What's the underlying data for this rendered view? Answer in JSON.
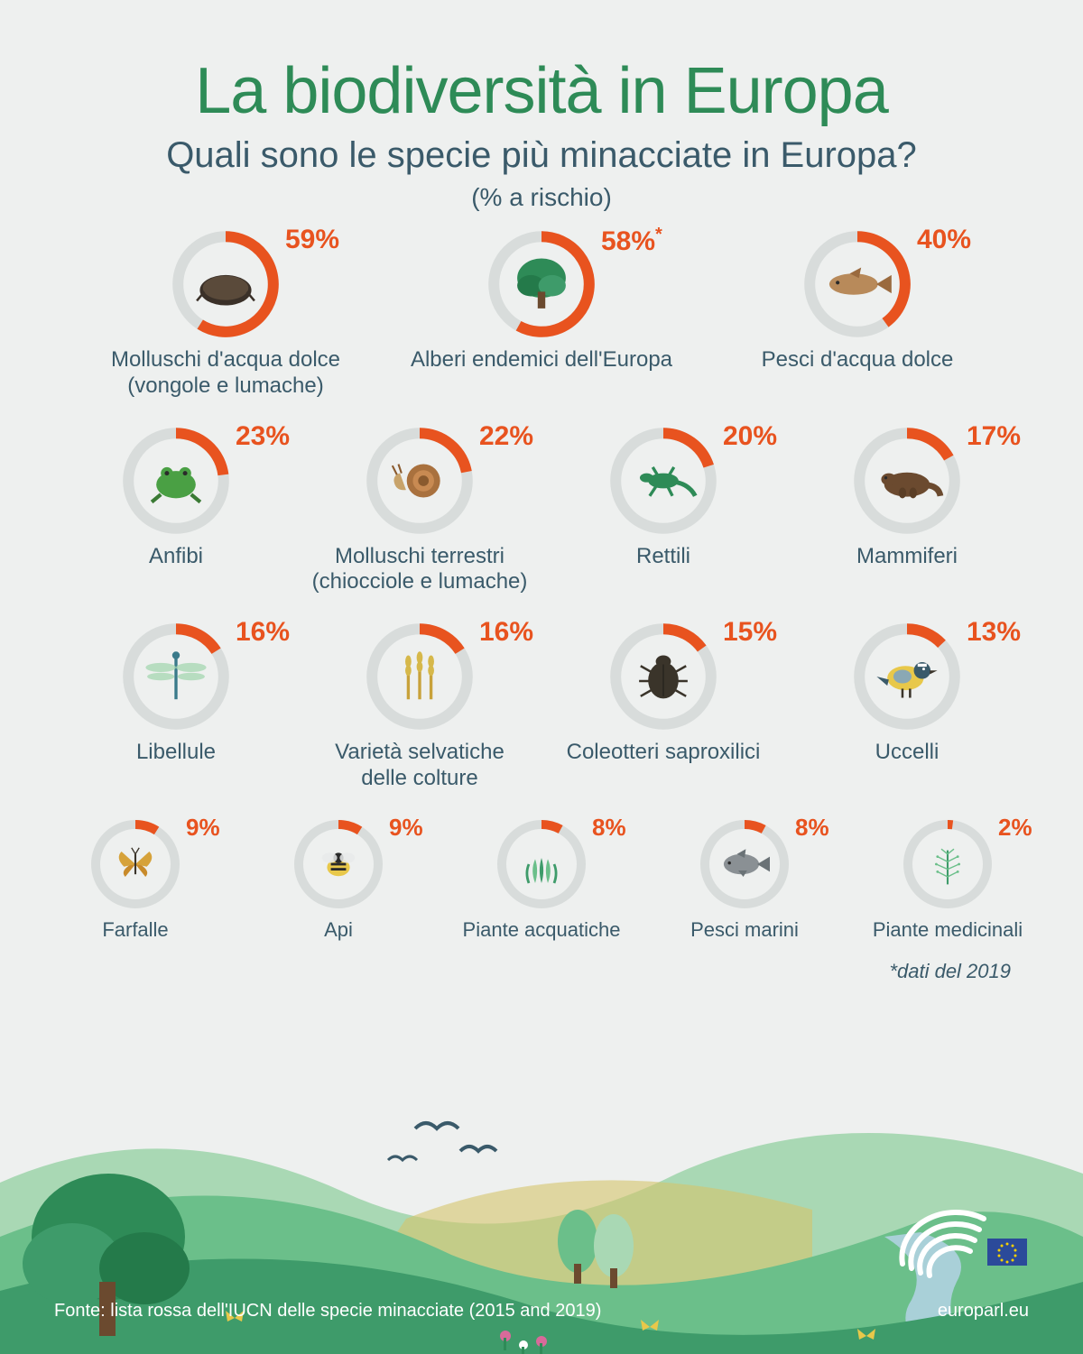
{
  "colors": {
    "title": "#2e8b57",
    "subtitle": "#3a5a6a",
    "text": "#3a5a6a",
    "arc": "#e8531f",
    "arc_bg": "#d8dcdb",
    "pct": "#e8531f",
    "landscape_hill_dark": "#3e9b6a",
    "landscape_hill_mid": "#6bbf8a",
    "landscape_hill_light": "#a9d8b4",
    "landscape_field": "#d6c46a",
    "landscape_river": "#a9d0d8",
    "landscape_tree": "#2e8b57",
    "bg": "#eef0ef"
  },
  "title": "La biodiversità in Europa",
  "subtitle": "Quali sono le specie più minacciate in Europa?",
  "subnote": "(% a rischio)",
  "footnote": "*dati del 2019",
  "source": "Fonte: lista rossa dell'IUCN delle specie minacciate (2015 and 2019)",
  "site": "europarl.eu",
  "rows": [
    {
      "cls": "row3",
      "items": [
        {
          "pct": 59,
          "label": "Molluschi d'acqua dolce\n(vongole e lumache)",
          "icon": "mussel",
          "star": false
        },
        {
          "pct": 58,
          "label": "Alberi endemici dell'Europa",
          "icon": "tree",
          "star": true
        },
        {
          "pct": 40,
          "label": "Pesci d'acqua dolce",
          "icon": "fish_brown",
          "star": false
        }
      ]
    },
    {
      "cls": "row4",
      "items": [
        {
          "pct": 23,
          "label": "Anfibi",
          "icon": "frog",
          "star": false
        },
        {
          "pct": 22,
          "label": "Molluschi terrestri\n(chiocciole e lumache)",
          "icon": "snail",
          "star": false
        },
        {
          "pct": 20,
          "label": "Rettili",
          "icon": "lizard",
          "star": false
        },
        {
          "pct": 17,
          "label": "Mammiferi",
          "icon": "otter",
          "star": false
        }
      ]
    },
    {
      "cls": "row4",
      "items": [
        {
          "pct": 16,
          "label": "Libellule",
          "icon": "dragonfly",
          "star": false
        },
        {
          "pct": 16,
          "label": "Varietà selvatiche\ndelle colture",
          "icon": "wheat",
          "star": false
        },
        {
          "pct": 15,
          "label": "Coleotteri saproxilici",
          "icon": "beetle",
          "star": false
        },
        {
          "pct": 13,
          "label": "Uccelli",
          "icon": "bird",
          "star": false
        }
      ]
    },
    {
      "cls": "row5",
      "items": [
        {
          "pct": 9,
          "label": "Farfalle",
          "icon": "butterfly",
          "star": false
        },
        {
          "pct": 9,
          "label": "Api",
          "icon": "bee",
          "star": false
        },
        {
          "pct": 8,
          "label": "Piante acquatiche",
          "icon": "aquaplant",
          "star": false
        },
        {
          "pct": 8,
          "label": "Pesci marini",
          "icon": "fish_grey",
          "star": false
        },
        {
          "pct": 2,
          "label": "Piante medicinali",
          "icon": "medplant",
          "star": false
        }
      ]
    }
  ]
}
